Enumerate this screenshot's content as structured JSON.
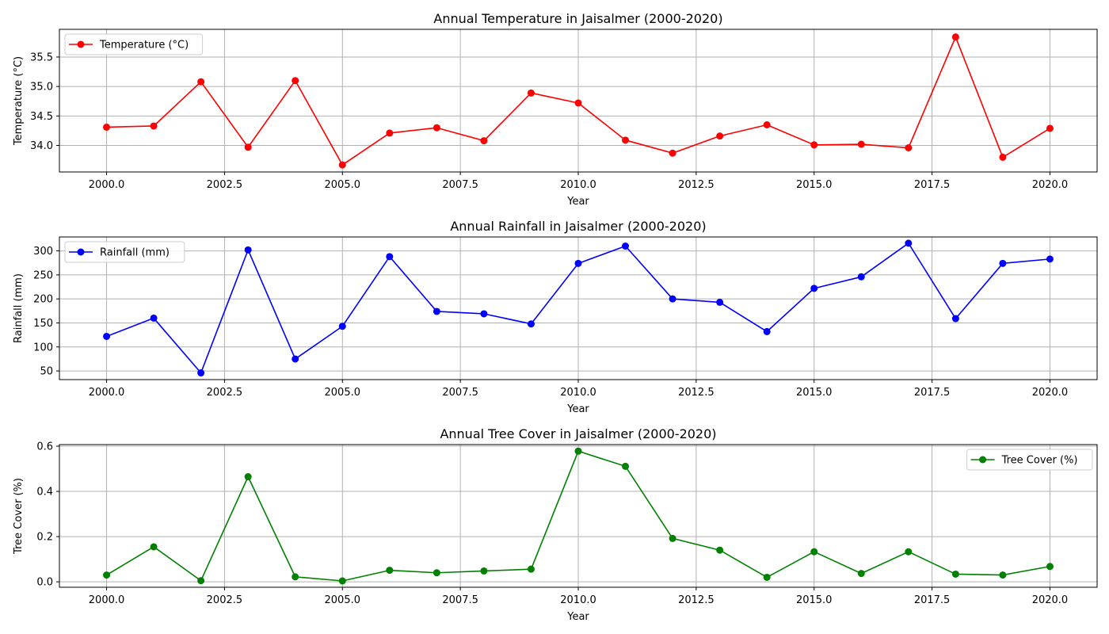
{
  "chart_data": [
    {
      "type": "line",
      "title": "Annual Temperature in Jaisalmer (2000-2020)",
      "xlabel": "Year",
      "ylabel": "Temperature (°C)",
      "x": [
        2000,
        2001,
        2002,
        2003,
        2004,
        2005,
        2006,
        2007,
        2008,
        2009,
        2010,
        2011,
        2012,
        2013,
        2014,
        2015,
        2016,
        2017,
        2018,
        2019,
        2020
      ],
      "series": [
        {
          "name": "Temperature (°C)",
          "color": "#ff0000",
          "values": [
            34.31,
            34.33,
            35.08,
            33.97,
            35.1,
            33.67,
            34.21,
            34.3,
            34.08,
            34.89,
            34.72,
            34.09,
            33.87,
            34.16,
            34.35,
            34.01,
            34.02,
            33.96,
            35.84,
            33.8,
            34.29
          ]
        }
      ],
      "xlim": [
        1999.0,
        2021.0
      ],
      "ylim": [
        33.55,
        35.97
      ],
      "xticks": [
        2000.0,
        2002.5,
        2005.0,
        2007.5,
        2010.0,
        2012.5,
        2015.0,
        2017.5,
        2020.0
      ],
      "xtick_labels": [
        "2000.0",
        "2002.5",
        "2005.0",
        "2007.5",
        "2010.0",
        "2012.5",
        "2015.0",
        "2017.5",
        "2020.0"
      ],
      "yticks": [
        34.0,
        34.5,
        35.0,
        35.5
      ],
      "ytick_labels": [
        "34.0",
        "34.5",
        "35.0",
        "35.5"
      ],
      "grid": true,
      "legend_position": "upper-left"
    },
    {
      "type": "line",
      "title": "Annual Rainfall in Jaisalmer (2000-2020)",
      "xlabel": "Year",
      "ylabel": "Rainfall (mm)",
      "x": [
        2000,
        2001,
        2002,
        2003,
        2004,
        2005,
        2006,
        2007,
        2008,
        2009,
        2010,
        2011,
        2012,
        2013,
        2014,
        2015,
        2016,
        2017,
        2018,
        2019,
        2020
      ],
      "series": [
        {
          "name": "Rainfall (mm)",
          "color": "#0000ff",
          "values": [
            122,
            160,
            46,
            302,
            75,
            143,
            288,
            174,
            169,
            148,
            274,
            310,
            200,
            193,
            132,
            222,
            246,
            316,
            159,
            274,
            283
          ]
        }
      ],
      "xlim": [
        1999.0,
        2021.0
      ],
      "ylim": [
        32.0,
        329.0
      ],
      "xticks": [
        2000.0,
        2002.5,
        2005.0,
        2007.5,
        2010.0,
        2012.5,
        2015.0,
        2017.5,
        2020.0
      ],
      "xtick_labels": [
        "2000.0",
        "2002.5",
        "2005.0",
        "2007.5",
        "2010.0",
        "2012.5",
        "2015.0",
        "2017.5",
        "2020.0"
      ],
      "yticks": [
        50,
        100,
        150,
        200,
        250,
        300
      ],
      "ytick_labels": [
        "50",
        "100",
        "150",
        "200",
        "250",
        "300"
      ],
      "grid": true,
      "legend_position": "upper-left"
    },
    {
      "type": "line",
      "title": "Annual Tree Cover in Jaisalmer (2000-2020)",
      "xlabel": "Year",
      "ylabel": "Tree Cover (%)",
      "x": [
        2000,
        2001,
        2002,
        2003,
        2004,
        2005,
        2006,
        2007,
        2008,
        2009,
        2010,
        2011,
        2012,
        2013,
        2014,
        2015,
        2016,
        2017,
        2018,
        2019,
        2020
      ],
      "series": [
        {
          "name": "Tree Cover (%)",
          "color": "#008000",
          "values": [
            0.03,
            0.155,
            0.005,
            0.465,
            0.022,
            0.004,
            0.051,
            0.04,
            0.048,
            0.056,
            0.578,
            0.511,
            0.192,
            0.14,
            0.02,
            0.133,
            0.037,
            0.133,
            0.034,
            0.03,
            0.068
          ]
        }
      ],
      "xlim": [
        1999.0,
        2021.0
      ],
      "ylim": [
        -0.024,
        0.607
      ],
      "xticks": [
        2000.0,
        2002.5,
        2005.0,
        2007.5,
        2010.0,
        2012.5,
        2015.0,
        2017.5,
        2020.0
      ],
      "xtick_labels": [
        "2000.0",
        "2002.5",
        "2005.0",
        "2007.5",
        "2010.0",
        "2012.5",
        "2015.0",
        "2017.5",
        "2020.0"
      ],
      "yticks": [
        0.0,
        0.2,
        0.4,
        0.6
      ],
      "ytick_labels": [
        "0.0",
        "0.2",
        "0.4",
        "0.6"
      ],
      "grid": true,
      "legend_position": "upper-right"
    }
  ]
}
